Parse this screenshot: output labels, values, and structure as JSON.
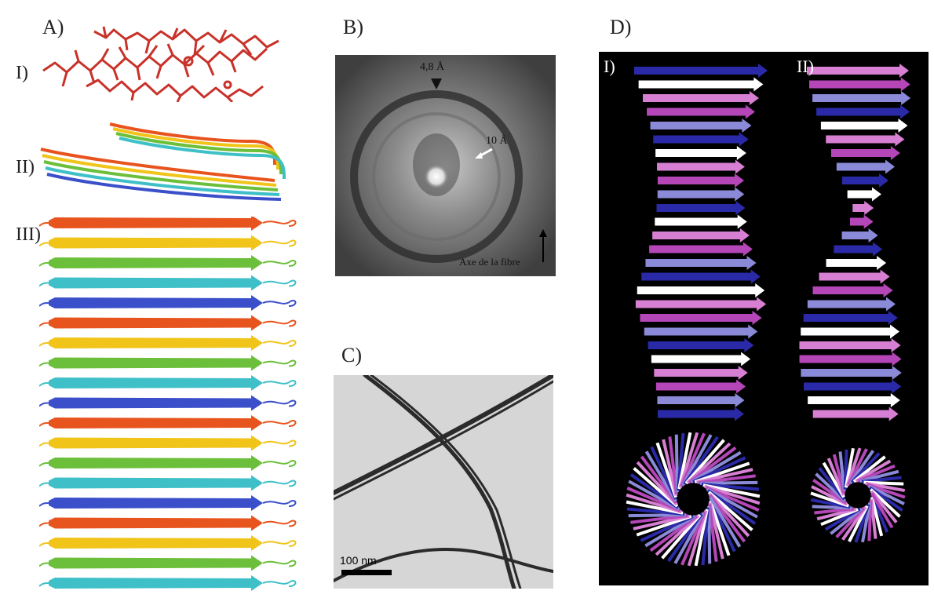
{
  "panels": {
    "a": {
      "label": "A)",
      "rows": [
        "I)",
        "II)",
        "III)"
      ]
    },
    "b": {
      "label": "B)",
      "spacing_1": "4,8 Å",
      "spacing_2": "10 Å",
      "axis_label": "Axe de la fibre"
    },
    "c": {
      "label": "C)",
      "scale_bar": "100 nm"
    },
    "d": {
      "label": "D)",
      "sub_1": "I)",
      "sub_2": "II)"
    }
  },
  "colors": {
    "rainbow": [
      "#e8541e",
      "#f0c419",
      "#6cbf3a",
      "#3fc0c8",
      "#3a4fc9"
    ],
    "helix": [
      "#2a2aa8",
      "#ffffff",
      "#d77fd2",
      "#b446b8",
      "#8a8ad8"
    ]
  }
}
